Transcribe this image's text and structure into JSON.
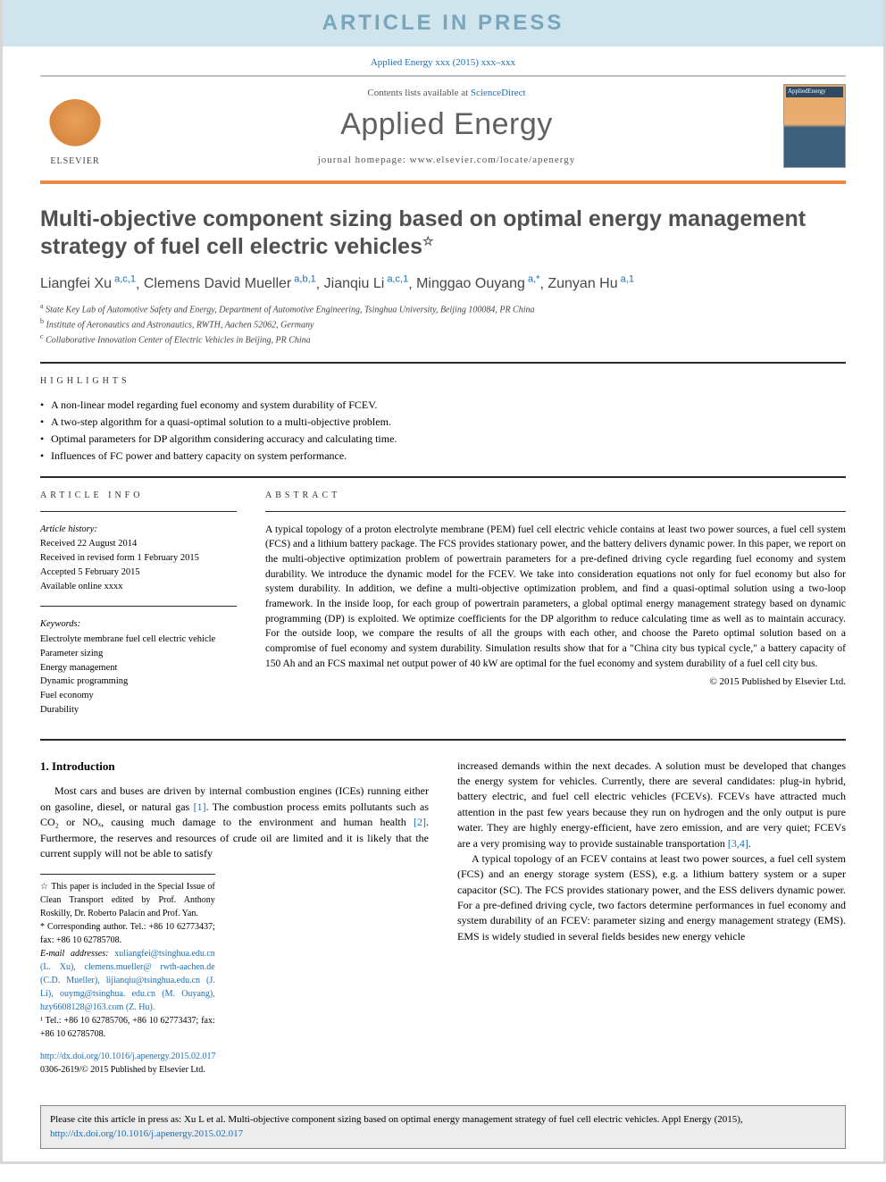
{
  "banner": "ARTICLE IN PRESS",
  "journal_ref": "Applied Energy xxx (2015) xxx–xxx",
  "header": {
    "contents_prefix": "Contents lists available at ",
    "contents_link": "ScienceDirect",
    "journal_name": "Applied Energy",
    "homepage": "journal homepage: www.elsevier.com/locate/apenergy",
    "elsevier_label": "ELSEVIER",
    "cover_label": "AppliedEnergy"
  },
  "title": "Multi-objective component sizing based on optimal energy management strategy of fuel cell electric vehicles",
  "title_star": "☆",
  "authors": [
    {
      "name": "Liangfei Xu",
      "aff": "a,c,1"
    },
    {
      "name": "Clemens David Mueller",
      "aff": "a,b,1"
    },
    {
      "name": "Jianqiu Li",
      "aff": "a,c,1"
    },
    {
      "name": "Minggao Ouyang",
      "aff": "a,*"
    },
    {
      "name": "Zunyan Hu",
      "aff": "a,1"
    }
  ],
  "affiliations": [
    {
      "sup": "a",
      "text": "State Key Lab of Automotive Safety and Energy, Department of Automotive Engineering, Tsinghua University, Beijing 100084, PR China"
    },
    {
      "sup": "b",
      "text": "Institute of Aeronautics and Astronautics, RWTH, Aachen 52062, Germany"
    },
    {
      "sup": "c",
      "text": "Collaborative Innovation Center of Electric Vehicles in Beijing, PR China"
    }
  ],
  "labels": {
    "highlights": "HIGHLIGHTS",
    "article_info": "ARTICLE INFO",
    "abstract": "ABSTRACT"
  },
  "highlights": [
    "A non-linear model regarding fuel economy and system durability of FCEV.",
    "A two-step algorithm for a quasi-optimal solution to a multi-objective problem.",
    "Optimal parameters for DP algorithm considering accuracy and calculating time.",
    "Influences of FC power and battery capacity on system performance."
  ],
  "article_info": {
    "history_label": "Article history:",
    "history": [
      "Received 22 August 2014",
      "Received in revised form 1 February 2015",
      "Accepted 5 February 2015",
      "Available online xxxx"
    ],
    "keywords_label": "Keywords:",
    "keywords": [
      "Electrolyte membrane fuel cell electric vehicle",
      "Parameter sizing",
      "Energy management",
      "Dynamic programming",
      "Fuel economy",
      "Durability"
    ]
  },
  "abstract": "A typical topology of a proton electrolyte membrane (PEM) fuel cell electric vehicle contains at least two power sources, a fuel cell system (FCS) and a lithium battery package. The FCS provides stationary power, and the battery delivers dynamic power. In this paper, we report on the multi-objective optimization problem of powertrain parameters for a pre-defined driving cycle regarding fuel economy and system durability. We introduce the dynamic model for the FCEV. We take into consideration equations not only for fuel economy but also for system durability. In addition, we define a multi-objective optimization problem, and find a quasi-optimal solution using a two-loop framework. In the inside loop, for each group of powertrain parameters, a global optimal energy management strategy based on dynamic programming (DP) is exploited. We optimize coefficients for the DP algorithm to reduce calculating time as well as to maintain accuracy. For the outside loop, we compare the results of all the groups with each other, and choose the Pareto optimal solution based on a compromise of fuel economy and system durability. Simulation results show that for a \"China city bus typical cycle,\" a battery capacity of 150 Ah and an FCS maximal net output power of 40 kW are optimal for the fuel economy and system durability of a fuel cell city bus.",
  "copyright": "© 2015 Published by Elsevier Ltd.",
  "intro": {
    "heading": "1. Introduction",
    "p1a": "Most cars and buses are driven by internal combustion engines (ICEs) running either on gasoline, diesel, or natural gas ",
    "ref1": "[1]",
    "p1b": ". The combustion process emits pollutants such as CO₂ or NOₓ, causing much damage to the environment and human health ",
    "ref2": "[2]",
    "p1c": ". Furthermore, the reserves and resources of crude oil are limited and it is likely that the current supply will not be able to satisfy",
    "p2a": "increased demands within the next decades. A solution must be developed that changes the energy system for vehicles. Currently, there are several candidates: plug-in hybrid, battery electric, and fuel cell electric vehicles (FCEVs). FCEVs have attracted much attention in the past few years because they run on hydrogen and the only output is pure water. They are highly energy-efficient, have zero emission, and are very quiet; FCEVs are a very promising way to provide sustainable transportation ",
    "ref34": "[3,4]",
    "p2b": ".",
    "p3": "A typical topology of an FCEV contains at least two power sources, a fuel cell system (FCS) and an energy storage system (ESS), e.g. a lithium battery system or a super capacitor (SC). The FCS provides stationary power, and the ESS delivers dynamic power. For a pre-defined driving cycle, two factors determine performances in fuel economy and system durability of an FCEV: parameter sizing and energy management strategy (EMS). EMS is widely studied in several fields besides new energy vehicle"
  },
  "footnotes": {
    "star": "☆ This paper is included in the Special Issue of Clean Transport edited by Prof. Anthony Roskilly, Dr. Roberto Palacin and Prof. Yan.",
    "corr": "* Corresponding author. Tel.: +86 10 62773437; fax: +86 10 62785708.",
    "emails_label": "E-mail addresses:",
    "emails": " xuliangfei@tsinghua.edu.cn (L. Xu), clemens.mueller@ rwth-aachen.de (C.D. Mueller), lijianqiu@tsinghua.edu.cn (J. Li), ouymg@tsinghua. edu.cn (M. Ouyang), hzy6608128@163.com (Z. Hu).",
    "tel": "¹ Tel.: +86 10 62785706, +86 10 62773437; fax: +86 10 62785708."
  },
  "doi": {
    "url": "http://dx.doi.org/10.1016/j.apenergy.2015.02.017",
    "issn": "0306-2619/© 2015 Published by Elsevier Ltd."
  },
  "cite_box": {
    "prefix": "Please cite this article in press as: Xu L et al. Multi-objective component sizing based on optimal energy management strategy of fuel cell electric vehicles. Appl Energy (2015), ",
    "url": "http://dx.doi.org/10.1016/j.apenergy.2015.02.017"
  },
  "colors": {
    "banner_bg": "#d0e4ed",
    "banner_fg": "#78a6bc",
    "link": "#1b6fb3",
    "accent_rule": "#e98845",
    "text_gray": "#505050"
  }
}
